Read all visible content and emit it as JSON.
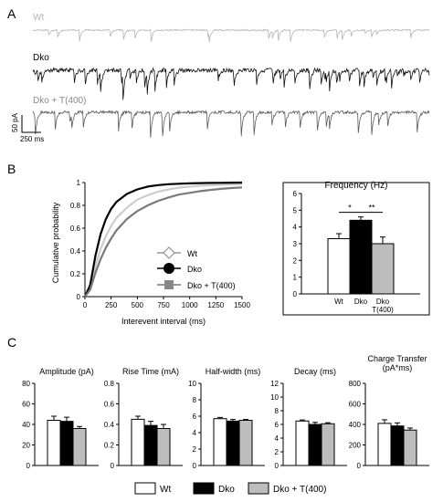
{
  "panels": {
    "a": "A",
    "b": "B",
    "c": "C"
  },
  "traces": [
    {
      "label": "Wt",
      "color": "#b4b4b4"
    },
    {
      "label": "Dko",
      "color": "#111111"
    },
    {
      "label": "Dko + T(400)",
      "color": "#5a5a5a"
    }
  ],
  "scalebar": {
    "amplitude": "50 pA",
    "time": "250 ms"
  },
  "colors": {
    "wt": "#ffffff",
    "dko": "#000000",
    "t400": "#bdbdbd",
    "cum_wt": "#cccccc",
    "cum_dko": "#000000",
    "cum_t400": "#7a7a7a"
  },
  "chart_data": [
    {
      "type": "line",
      "xlabel": "Interevent interval (ms)",
      "ylabel": "Cumulative probability",
      "xlim": [
        0,
        1500
      ],
      "ylim": [
        0,
        1
      ],
      "xticks": [
        "0",
        "250",
        "500",
        "750",
        "1000",
        "1250",
        "1500"
      ],
      "yticks": [
        "0",
        "0.2",
        "0.4",
        "0.6",
        "0.8",
        "1"
      ],
      "x": [
        0,
        50,
        100,
        150,
        200,
        250,
        300,
        400,
        500,
        600,
        700,
        800,
        900,
        1000,
        1100,
        1200,
        1300,
        1400,
        1500
      ],
      "series": [
        {
          "name": "Wt",
          "values": [
            0,
            0.08,
            0.27,
            0.42,
            0.53,
            0.62,
            0.69,
            0.78,
            0.85,
            0.89,
            0.92,
            0.94,
            0.955,
            0.965,
            0.972,
            0.977,
            0.981,
            0.984,
            0.986
          ]
        },
        {
          "name": "Dko",
          "values": [
            0,
            0.1,
            0.36,
            0.55,
            0.68,
            0.77,
            0.83,
            0.9,
            0.94,
            0.965,
            0.978,
            0.986,
            0.99,
            0.993,
            0.995,
            0.997,
            0.998,
            0.999,
            1.0
          ]
        },
        {
          "name": "Dko + T(400)",
          "values": [
            0,
            0.06,
            0.21,
            0.33,
            0.43,
            0.51,
            0.58,
            0.68,
            0.75,
            0.8,
            0.84,
            0.87,
            0.895,
            0.91,
            0.925,
            0.935,
            0.945,
            0.952,
            0.958
          ]
        }
      ],
      "legend": "center-right"
    },
    {
      "type": "bar",
      "title": "Frequency (Hz)",
      "categories": [
        "Wt",
        "Dko",
        "Dko\nT(400)"
      ],
      "values": [
        3.3,
        4.4,
        3.0
      ],
      "errors": [
        0.3,
        0.2,
        0.4
      ],
      "ylim": [
        0,
        6
      ],
      "yticks": [
        "0",
        "1",
        "2",
        "3",
        "4",
        "5",
        "6"
      ],
      "significance": [
        {
          "from": 0,
          "to": 1,
          "label": "*"
        },
        {
          "from": 1,
          "to": 2,
          "label": "**"
        }
      ]
    },
    {
      "type": "bar",
      "title": "Amplitude (pA)",
      "categories": [
        "Wt",
        "Dko",
        "Dko + T(400)"
      ],
      "values": [
        44,
        43,
        36
      ],
      "errors": [
        4,
        4,
        2
      ],
      "ylim": [
        0,
        80
      ],
      "yticks": [
        "0",
        "20",
        "40",
        "60",
        "80"
      ]
    },
    {
      "type": "bar",
      "title": "Rise Time (mA)",
      "categories": [
        "Wt",
        "Dko",
        "Dko + T(400)"
      ],
      "values": [
        0.45,
        0.39,
        0.36
      ],
      "errors": [
        0.03,
        0.04,
        0.04
      ],
      "ylim": [
        0,
        0.8
      ],
      "yticks": [
        "0",
        "0.2",
        "0.4",
        "0.6",
        "0.8"
      ]
    },
    {
      "type": "bar",
      "title": "Half-width (ms)",
      "categories": [
        "Wt",
        "Dko",
        "Dko + T(400)"
      ],
      "values": [
        5.7,
        5.4,
        5.5
      ],
      "errors": [
        0.15,
        0.2,
        0.1
      ],
      "ylim": [
        0,
        10
      ],
      "yticks": [
        "0",
        "2",
        "4",
        "6",
        "8",
        "10"
      ]
    },
    {
      "type": "bar",
      "title": "Decay (ms)",
      "categories": [
        "Wt",
        "Dko",
        "Dko + T(400)"
      ],
      "values": [
        6.5,
        6.0,
        6.1
      ],
      "errors": [
        0.15,
        0.3,
        0.15
      ],
      "ylim": [
        0,
        12
      ],
      "yticks": [
        "0",
        "2",
        "4",
        "6",
        "8",
        "10",
        "12"
      ]
    },
    {
      "type": "bar",
      "title": "Charge Transfer\n(pA*ms)",
      "categories": [
        "Wt",
        "Dko",
        "Dko + T(400)"
      ],
      "values": [
        410,
        385,
        345
      ],
      "errors": [
        35,
        30,
        20
      ],
      "ylim": [
        0,
        800
      ],
      "yticks": [
        "0",
        "200",
        "400",
        "600",
        "800"
      ]
    }
  ],
  "legend_bottom": [
    "Wt",
    "Dko",
    "Dko + T(400)"
  ]
}
